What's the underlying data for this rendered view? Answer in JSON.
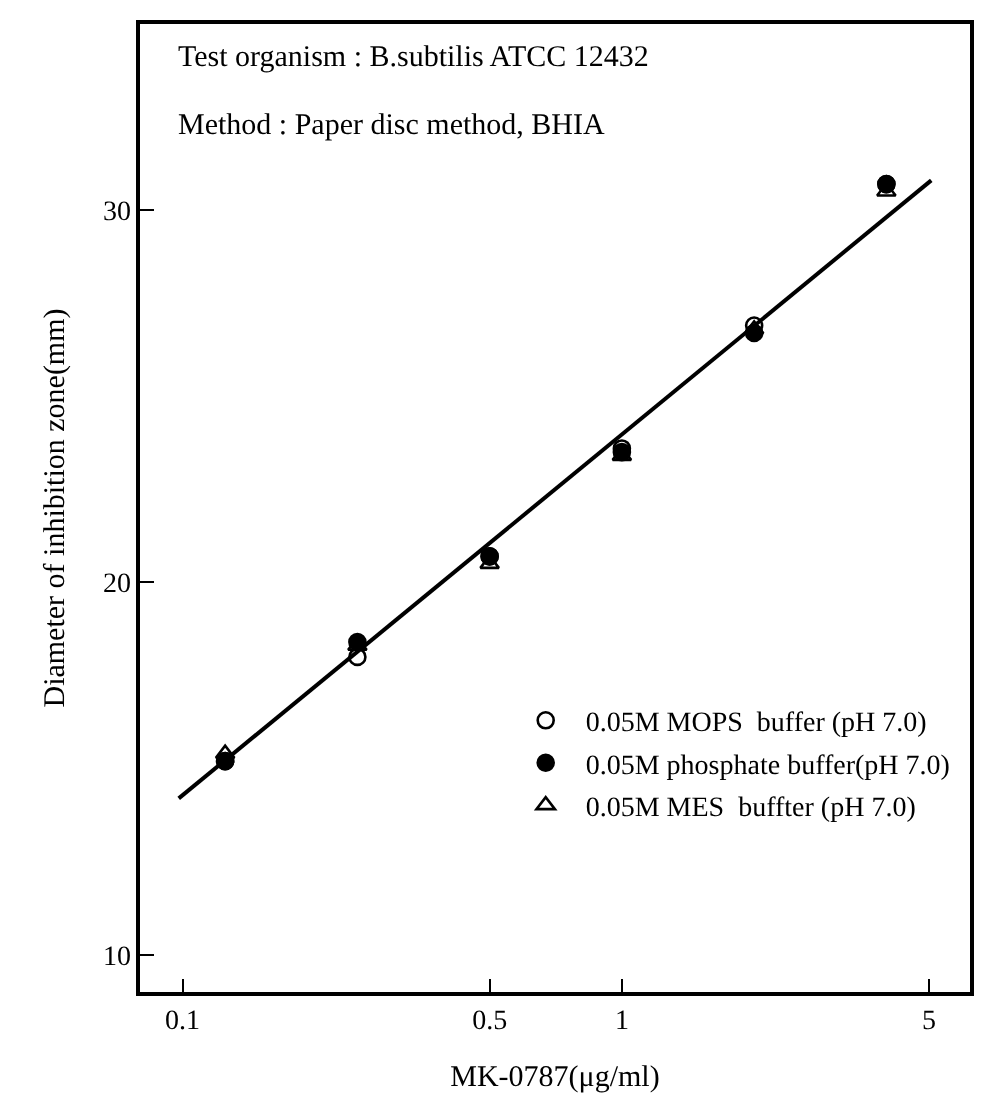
{
  "chart_data": {
    "type": "scatter",
    "xlabel": "MK-0787($_{}$μg/ml)",
    "ylabel": "Diameter of inhibition zone(mm)",
    "annotations": [
      "Test organism : B.subtilis ATCC 12432",
      "Method : Paper disc method, BHIA"
    ],
    "log": "x",
    "xlim": [
      0.08,
      6.2
    ],
    "ylim": [
      9,
      35
    ],
    "xticks": [
      0.1,
      0.5,
      1,
      5
    ],
    "yticks": [
      10,
      20,
      30
    ],
    "legend": "bottom right",
    "series": [
      {
        "name": "0.05M MOPS  buffer (pH 7.0)",
        "color": "#000000",
        "marker": "circle-open",
        "x": [
          0.125,
          0.25,
          0.5,
          1,
          2,
          4
        ],
        "values": [
          15.2,
          18.0,
          20.7,
          23.6,
          26.9,
          30.7
        ]
      },
      {
        "name": "0.05M phosphate buffer(pH 7.0)",
        "color": "#000000",
        "marker": "circle",
        "x": [
          0.125,
          0.25,
          0.5,
          1,
          2,
          4
        ],
        "values": [
          15.2,
          18.4,
          20.7,
          23.5,
          26.7,
          30.7
        ]
      },
      {
        "name": "0.05M MES  buffter (pH 7.0)",
        "color": "#000000",
        "marker": "triangle-open",
        "x": [
          0.125,
          0.25,
          0.5,
          1,
          2,
          4
        ],
        "values": [
          15.4,
          18.3,
          20.5,
          23.4,
          26.8,
          30.5
        ]
      },
      {
        "type": "line",
        "color": "#000000",
        "marker": "none",
        "line_style": "solid",
        "x": [
          0.098,
          5.06
        ],
        "values": [
          14.2,
          30.8
        ]
      }
    ]
  }
}
